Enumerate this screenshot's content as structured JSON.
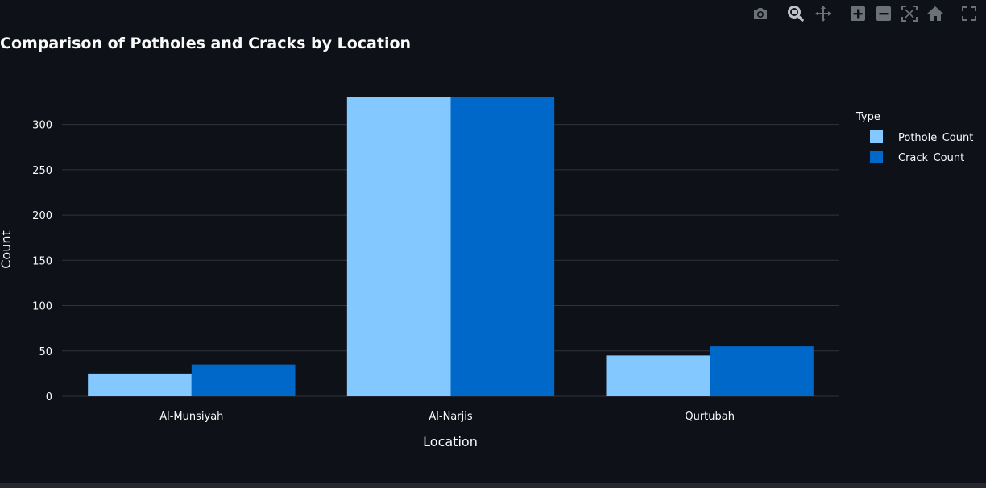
{
  "chart_data": {
    "type": "bar",
    "title": "Comparison of Potholes and Cracks by Location",
    "xlabel": "Location",
    "ylabel": "Count",
    "categories": [
      "Al-Munsiyah",
      "Al-Narjis",
      "Qurtubah"
    ],
    "series": [
      {
        "name": "Pothole_Count",
        "values": [
          25,
          330,
          45
        ],
        "color": "#83c9ff"
      },
      {
        "name": "Crack_Count",
        "values": [
          35,
          330,
          55
        ],
        "color": "#0068c9"
      }
    ],
    "ylim": [
      0,
      345
    ],
    "yticks": [
      0,
      50,
      100,
      150,
      200,
      250,
      300
    ],
    "grid": true,
    "legend_title": "Type",
    "legend_position": "top-right",
    "barmode": "group"
  },
  "colors": {
    "background": "#0e1117",
    "text": "#fafafa",
    "grid": "#31333f",
    "icon": "#6c7079"
  },
  "toolbar": [
    {
      "icon": "camera-icon",
      "title": "Download plot as a png"
    },
    {
      "icon": "zoom-icon",
      "title": "Zoom"
    },
    {
      "icon": "pan-icon",
      "title": "Pan"
    },
    {
      "icon": "zoom-in-icon",
      "title": "Zoom in"
    },
    {
      "icon": "zoom-out-icon",
      "title": "Zoom out"
    },
    {
      "icon": "autoscale-icon",
      "title": "Autoscale"
    },
    {
      "icon": "home-icon",
      "title": "Reset axes"
    },
    {
      "icon": "fullscreen-icon",
      "title": "View fullscreen"
    }
  ]
}
